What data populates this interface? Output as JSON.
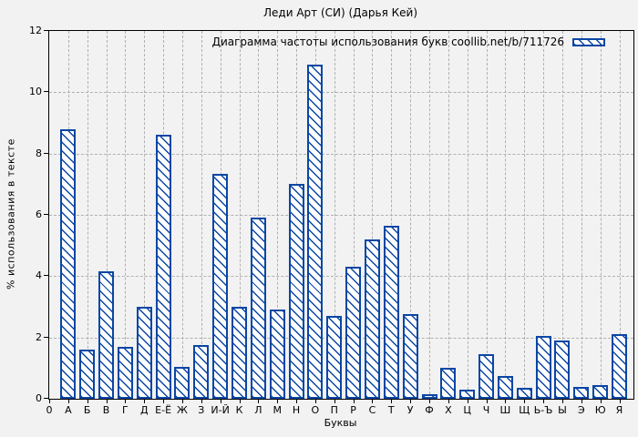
{
  "colors": {
    "bar_outline": "#0a46a4",
    "hatch": "#0a46a4",
    "bar_fill": "#ffffff",
    "background": "#f2f2f2",
    "grid": "#b0b0b0",
    "axis": "#000000",
    "text": "#000000"
  },
  "chart_data": {
    "type": "bar",
    "title": "Леди Арт (СИ) (Дарья Кей)",
    "legend": "Диаграмма частоты использования букв coollib.net/b/711726",
    "legend_position": "top-right",
    "xlabel": "Буквы",
    "ylabel": "% использования в тексте",
    "origin_tick_label": "0",
    "categories": [
      "А",
      "Б",
      "В",
      "Г",
      "Д",
      "Е-Ё",
      "Ж",
      "З",
      "И-Й",
      "К",
      "Л",
      "М",
      "Н",
      "О",
      "П",
      "Р",
      "С",
      "Т",
      "У",
      "Ф",
      "Х",
      "Ц",
      "Ч",
      "Ш",
      "Щ",
      "Ь-Ъ",
      "Ы",
      "Э",
      "Ю",
      "Я"
    ],
    "values": [
      8.8,
      1.6,
      4.15,
      1.7,
      3.0,
      8.6,
      1.05,
      1.75,
      7.35,
      3.0,
      5.9,
      2.9,
      7.0,
      10.9,
      2.7,
      4.3,
      5.2,
      5.65,
      2.75,
      0.15,
      1.0,
      0.3,
      1.45,
      0.75,
      0.35,
      2.05,
      1.9,
      0.4,
      0.45,
      2.1
    ],
    "ylim": [
      0,
      12
    ],
    "yticks": [
      0,
      2,
      4,
      6,
      8,
      10,
      12
    ],
    "grid": true,
    "bar_style": "hatched"
  }
}
